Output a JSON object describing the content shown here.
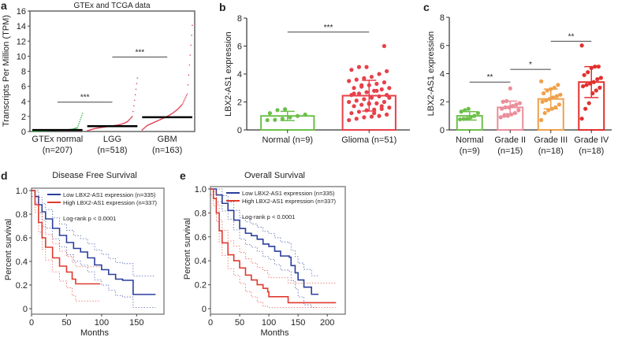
{
  "chart_data": [
    {
      "panel": "a",
      "type": "scatter",
      "title": "GTEx and TCGA data",
      "ylabel": "Transcripts Per Million (TPM)",
      "ylim": [
        0,
        16
      ],
      "yticks": [
        0,
        2,
        4,
        6,
        8,
        10,
        12,
        14,
        16
      ],
      "groups": [
        {
          "label": "GTEx normal",
          "n": "(n=207)",
          "color": "#3cb44b",
          "median": 0.2,
          "sorted_quantiles": [
            0,
            0.05,
            0.08,
            0.1,
            0.12,
            0.15,
            0.18,
            0.22,
            0.3,
            0.5,
            2.4
          ]
        },
        {
          "label": "LGG",
          "n": "(n=518)",
          "color": "#e0455a",
          "median": 0.7,
          "sorted_quantiles": [
            0.1,
            0.3,
            0.45,
            0.55,
            0.65,
            0.75,
            0.85,
            1.0,
            1.3,
            2.0,
            7.1
          ]
        },
        {
          "label": "GBM",
          "n": "(n=163)",
          "color": "#e0455a",
          "median": 1.9,
          "sorted_quantiles": [
            0.2,
            0.8,
            1.1,
            1.4,
            1.7,
            2.0,
            2.4,
            2.9,
            3.6,
            5.0,
            14.1
          ]
        }
      ],
      "comparisons": [
        {
          "from": 0,
          "to": 1,
          "y": 3.9,
          "label": "***"
        },
        {
          "from": 1,
          "to": 2,
          "y": 9.9,
          "label": "***"
        }
      ]
    },
    {
      "panel": "b",
      "type": "bar",
      "ylabel": "LBX2-AS1 expression",
      "ylim": [
        0,
        8
      ],
      "yticks": [
        0,
        2,
        4,
        6,
        8
      ],
      "groups": [
        {
          "label": "Normal (n=9)",
          "color": "#6cc04a",
          "mean": 1.0,
          "sd": 0.33,
          "points": [
            0.7,
            0.72,
            0.8,
            0.9,
            1.0,
            1.1,
            1.2,
            1.42,
            1.48
          ]
        },
        {
          "label": "Glioma (n=51)",
          "color": "#e8404a",
          "mean": 2.45,
          "sd": 1.1,
          "points": [
            0.7,
            0.8,
            0.9,
            0.95,
            1.0,
            1.1,
            1.2,
            1.3,
            1.4,
            1.45,
            1.5,
            1.6,
            1.7,
            1.8,
            1.85,
            1.9,
            2.0,
            2.0,
            2.1,
            2.2,
            2.3,
            2.4,
            2.5,
            2.5,
            2.6,
            2.7,
            2.8,
            2.9,
            3.0,
            3.0,
            3.1,
            3.2,
            3.3,
            3.4,
            3.5,
            3.6,
            3.7,
            3.8,
            4.0,
            4.2,
            4.3,
            4.5,
            4.5,
            1.2,
            1.7,
            2.3,
            2.6,
            3.2,
            1.9,
            2.8,
            6.0
          ]
        }
      ],
      "comparisons": [
        {
          "from": 0,
          "to": 1,
          "y": 7.0,
          "label": "***"
        }
      ]
    },
    {
      "panel": "c",
      "type": "bar",
      "ylabel": "LBX2-AS1 expression",
      "ylim": [
        0,
        8
      ],
      "yticks": [
        0,
        2,
        4,
        6,
        8
      ],
      "groups": [
        {
          "label": "Normal",
          "n": "(n=9)",
          "color": "#6cc04a",
          "mean": 1.0,
          "sd": 0.3,
          "points": [
            0.75,
            0.78,
            0.8,
            0.9,
            1.0,
            1.2,
            1.3,
            1.4,
            1.5
          ]
        },
        {
          "label": "Grade II",
          "n": "(n=15)",
          "color": "#eb8d9a",
          "mean": 1.6,
          "sd": 0.45,
          "points": [
            0.9,
            1.0,
            1.0,
            1.1,
            1.2,
            1.4,
            1.5,
            1.6,
            1.6,
            1.7,
            1.8,
            1.9,
            2.0,
            2.05,
            2.95
          ]
        },
        {
          "label": "Grade III",
          "n": "(n=18)",
          "color": "#f0a04a",
          "mean": 2.2,
          "sd": 0.7,
          "points": [
            0.7,
            1.2,
            1.4,
            1.5,
            1.6,
            1.8,
            2.0,
            2.1,
            2.2,
            2.3,
            2.4,
            2.5,
            2.6,
            2.8,
            2.9,
            3.0,
            3.2,
            3.45
          ]
        },
        {
          "label": "Grade IV",
          "n": "(n=18)",
          "color": "#e2302d",
          "mean": 3.4,
          "sd": 1.1,
          "points": [
            0.8,
            1.5,
            1.9,
            2.6,
            2.8,
            3.0,
            3.1,
            3.2,
            3.3,
            3.4,
            3.6,
            3.7,
            3.9,
            4.1,
            4.4,
            4.5,
            4.5,
            6.0
          ]
        }
      ],
      "comparisons": [
        {
          "from": 0,
          "to": 1,
          "y": 3.4,
          "label": "**"
        },
        {
          "from": 1,
          "to": 2,
          "y": 4.3,
          "label": "*"
        },
        {
          "from": 2,
          "to": 3,
          "y": 6.3,
          "label": "**"
        }
      ]
    },
    {
      "panel": "d",
      "type": "line",
      "title": "Disease Free Survival",
      "xlabel": "Months",
      "ylabel": "Percent survival",
      "xlim": [
        0,
        180
      ],
      "ylim": [
        0,
        1
      ],
      "xticks": [
        0,
        50,
        100,
        150
      ],
      "yticks": [
        "0",
        "0.2",
        "0.4",
        "0.6",
        "0.8",
        "1.0"
      ],
      "annotation": "Log-rank p < 0.0001",
      "series": [
        {
          "name": "Low LBX2-AS1 expression (n=335)",
          "color": "#2a3f9d",
          "points": [
            [
              0,
              1
            ],
            [
              5,
              0.95
            ],
            [
              10,
              0.88
            ],
            [
              15,
              0.82
            ],
            [
              20,
              0.76
            ],
            [
              30,
              0.68
            ],
            [
              40,
              0.62
            ],
            [
              50,
              0.56
            ],
            [
              60,
              0.51
            ],
            [
              70,
              0.48
            ],
            [
              80,
              0.43
            ],
            [
              90,
              0.37
            ],
            [
              100,
              0.33
            ],
            [
              110,
              0.29
            ],
            [
              120,
              0.25
            ],
            [
              130,
              0.24
            ],
            [
              145,
              0.24
            ],
            [
              145,
              0.12
            ],
            [
              177,
              0.12
            ]
          ]
        },
        {
          "name": "High LBX2-AS1 expression (n=337)",
          "color": "#e03a2f",
          "points": [
            [
              0,
              1
            ],
            [
              5,
              0.88
            ],
            [
              10,
              0.73
            ],
            [
              15,
              0.6
            ],
            [
              20,
              0.52
            ],
            [
              30,
              0.43
            ],
            [
              40,
              0.36
            ],
            [
              50,
              0.31
            ],
            [
              58,
              0.25
            ],
            [
              63,
              0.22
            ],
            [
              63,
              0.21
            ],
            [
              98,
              0.21
            ]
          ]
        }
      ]
    },
    {
      "panel": "e",
      "type": "line",
      "title": "Overall Survival",
      "xlabel": "Months",
      "ylabel": "Percent survival",
      "xlim": [
        0,
        220
      ],
      "ylim": [
        0,
        1
      ],
      "xticks": [
        0,
        50,
        100,
        150,
        200
      ],
      "yticks": [
        "0",
        "0.2",
        "0.4",
        "0.6",
        "0.8",
        "1.0"
      ],
      "annotation": "Log-rank p < 0.0001",
      "series": [
        {
          "name": "Low LBX2-AS1 expression (n=335)",
          "color": "#2a3f9d",
          "points": [
            [
              0,
              1
            ],
            [
              10,
              0.95
            ],
            [
              20,
              0.88
            ],
            [
              30,
              0.82
            ],
            [
              40,
              0.74
            ],
            [
              50,
              0.67
            ],
            [
              60,
              0.63
            ],
            [
              70,
              0.61
            ],
            [
              80,
              0.58
            ],
            [
              90,
              0.54
            ],
            [
              100,
              0.52
            ],
            [
              110,
              0.48
            ],
            [
              120,
              0.44
            ],
            [
              135,
              0.43
            ],
            [
              138,
              0.36
            ],
            [
              145,
              0.3
            ],
            [
              150,
              0.24
            ],
            [
              160,
              0.18
            ],
            [
              173,
              0.12
            ],
            [
              185,
              0.12
            ]
          ]
        },
        {
          "name": "High LBX2-AS1 expression (n=337)",
          "color": "#e03a2f",
          "points": [
            [
              0,
              1
            ],
            [
              5,
              0.92
            ],
            [
              10,
              0.8
            ],
            [
              15,
              0.65
            ],
            [
              20,
              0.55
            ],
            [
              30,
              0.45
            ],
            [
              40,
              0.4
            ],
            [
              50,
              0.34
            ],
            [
              60,
              0.28
            ],
            [
              70,
              0.24
            ],
            [
              80,
              0.2
            ],
            [
              90,
              0.17
            ],
            [
              98,
              0.14
            ],
            [
              100,
              0.1
            ],
            [
              133,
              0.1
            ],
            [
              133,
              0.05
            ],
            [
              215,
              0.05
            ]
          ]
        }
      ]
    }
  ]
}
